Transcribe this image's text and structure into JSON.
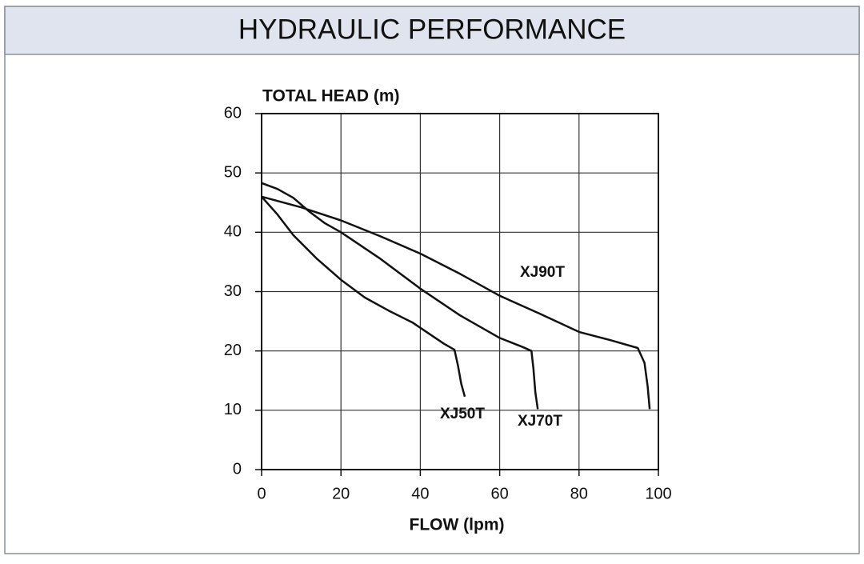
{
  "header": {
    "title": "HYDRAULIC PERFORMANCE"
  },
  "chart_data": {
    "type": "line",
    "y_label": "TOTAL HEAD (m)",
    "x_label": "FLOW (lpm)",
    "xlim": [
      0,
      100
    ],
    "xticks": [
      0,
      20,
      40,
      60,
      80,
      100
    ],
    "ylim": [
      0,
      60
    ],
    "yticks": [
      0,
      10,
      20,
      30,
      40,
      50,
      60
    ],
    "grid": true,
    "series": [
      {
        "name": "XJ50T",
        "color": "#111111",
        "x": [
          0,
          4,
          8,
          14,
          20,
          26,
          32,
          38,
          42,
          46,
          48.6,
          49.5,
          50.3,
          51.2
        ],
        "values": [
          46,
          43,
          39.5,
          35.5,
          32,
          29,
          26.8,
          24.8,
          23,
          21.2,
          20.2,
          17.5,
          14.5,
          12.3
        ]
      },
      {
        "name": "XJ70T",
        "color": "#111111",
        "x": [
          0,
          4,
          8,
          12,
          16,
          20,
          30,
          40,
          50,
          60,
          66,
          68,
          68.5,
          69,
          69.6
        ],
        "values": [
          48.3,
          47.3,
          45.8,
          43.5,
          41.5,
          40,
          35.5,
          30.5,
          26,
          22.2,
          20.6,
          20,
          17,
          13,
          10.2
        ]
      },
      {
        "name": "XJ90T",
        "color": "#111111",
        "x": [
          0,
          10,
          20,
          30,
          40,
          50,
          60,
          70,
          80,
          88,
          94.8,
          96.5,
          97.3,
          97.8
        ],
        "values": [
          46,
          44.2,
          42,
          39.3,
          36.4,
          33,
          29.3,
          26.3,
          23.2,
          21.8,
          20.5,
          18,
          14,
          10.2
        ]
      }
    ]
  }
}
